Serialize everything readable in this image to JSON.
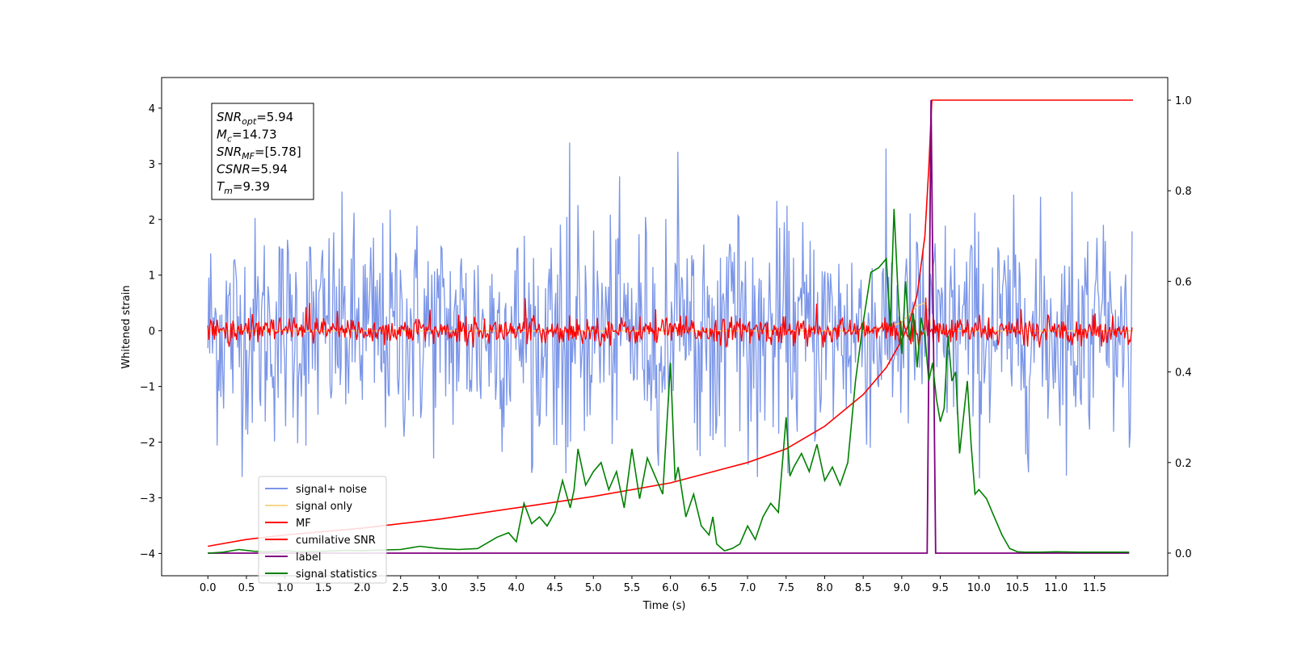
{
  "chart_data": {
    "type": "line",
    "xlabel": "Time (s)",
    "ylabel": "Whitened strain",
    "xlim": [
      -0.6,
      12.45
    ],
    "ylim": [
      -4.4,
      4.55
    ],
    "y2lim": [
      -0.05,
      1.05
    ],
    "xticks": [
      0.0,
      0.5,
      1.0,
      1.5,
      2.0,
      2.5,
      3.0,
      3.5,
      4.0,
      4.5,
      5.0,
      5.5,
      6.0,
      6.5,
      7.0,
      7.5,
      8.0,
      8.5,
      9.0,
      9.5,
      10.0,
      10.5,
      11.0,
      11.5
    ],
    "xtick_labels": [
      "0.0",
      "0.5",
      "1.0",
      "1.5",
      "2.0",
      "2.5",
      "3.0",
      "3.5",
      "4.0",
      "4.5",
      "5.0",
      "5.5",
      "6.0",
      "6.5",
      "7.0",
      "7.5",
      "8.0",
      "8.5",
      "9.0",
      "9.5",
      "10.0",
      "10.5",
      "11.0",
      "11.5"
    ],
    "yticks": [
      -4,
      -3,
      -2,
      -1,
      0,
      1,
      2,
      3,
      4
    ],
    "ytick_labels": [
      "−4",
      "−3",
      "−2",
      "−1",
      "0",
      "1",
      "2",
      "3",
      "4"
    ],
    "y2ticks": [
      0.0,
      0.2,
      0.4,
      0.6,
      0.8,
      1.0
    ],
    "y2tick_labels": [
      "0.0",
      "0.2",
      "0.4",
      "0.6",
      "0.8",
      "1.0"
    ],
    "grid": false,
    "legend_position": "lower-left",
    "stats_box": [
      {
        "main": "SNR",
        "sub": "opt",
        "value": "=5.94"
      },
      {
        "main": "M",
        "sub": "c",
        "value": "=14.73"
      },
      {
        "main": "SNR",
        "sub": "MF",
        "value": "=[5.78]"
      },
      {
        "main": "CSNR",
        "sub": "",
        "value": "=5.94"
      },
      {
        "main": "T",
        "sub": "m",
        "value": "=9.39"
      }
    ],
    "series": [
      {
        "name": "signal+ noise",
        "color": "#7b96e8",
        "axis": "left",
        "description_values": {
          "x_range": [
            0.0,
            12.0
          ],
          "approx_spread": [
            -2.7,
            3.4
          ],
          "sample_step": 0.012
        }
      },
      {
        "name": "signal only",
        "color": "#f5d78a",
        "axis": "left",
        "x": [
          0.0,
          8.5,
          8.8,
          9.0,
          9.1,
          9.2,
          9.3,
          9.35,
          9.39,
          9.45,
          12.0
        ],
        "y": [
          0.0,
          0.0,
          0.05,
          0.15,
          0.3,
          0.45,
          0.5,
          0.35,
          0.0,
          0.0,
          0.0
        ]
      },
      {
        "name": "MF",
        "color": "#ff0000",
        "axis": "left",
        "description_values": {
          "x_range": [
            0.0,
            12.0
          ],
          "approx_spread": [
            -0.3,
            0.4
          ],
          "sample_step": 0.012
        }
      },
      {
        "name": "cumilative SNR",
        "color": "#ff0000",
        "axis": "right",
        "x": [
          0.0,
          0.5,
          1.0,
          2.0,
          3.0,
          4.0,
          5.0,
          6.0,
          7.0,
          7.5,
          8.0,
          8.5,
          8.8,
          9.0,
          9.1,
          9.2,
          9.3,
          9.35,
          9.39,
          12.0
        ],
        "y": [
          0.015,
          0.03,
          0.04,
          0.055,
          0.075,
          0.1,
          0.125,
          0.155,
          0.2,
          0.23,
          0.28,
          0.35,
          0.41,
          0.47,
          0.51,
          0.57,
          0.7,
          0.85,
          1.0,
          1.0
        ]
      },
      {
        "name": "label",
        "color": "#800080",
        "axis": "right",
        "x": [
          0.0,
          9.33,
          9.38,
          9.44,
          9.45,
          11.95
        ],
        "y": [
          0.0,
          0.0,
          1.0,
          0.0,
          0.0,
          0.0
        ]
      },
      {
        "name": "signal statistics",
        "color": "#008000",
        "axis": "right",
        "x": [
          0.0,
          0.2,
          0.4,
          0.6,
          0.8,
          1.0,
          1.2,
          1.5,
          1.8,
          2.0,
          2.3,
          2.5,
          2.75,
          3.0,
          3.25,
          3.5,
          3.6,
          3.75,
          3.9,
          4.0,
          4.1,
          4.2,
          4.3,
          4.4,
          4.5,
          4.6,
          4.7,
          4.75,
          4.8,
          4.9,
          5.0,
          5.1,
          5.2,
          5.3,
          5.4,
          5.5,
          5.6,
          5.7,
          5.8,
          5.9,
          6.0,
          6.06,
          6.1,
          6.2,
          6.3,
          6.4,
          6.5,
          6.55,
          6.6,
          6.7,
          6.8,
          6.9,
          7.0,
          7.1,
          7.2,
          7.3,
          7.4,
          7.5,
          7.55,
          7.6,
          7.7,
          7.8,
          7.9,
          8.0,
          8.1,
          8.2,
          8.3,
          8.4,
          8.5,
          8.6,
          8.7,
          8.8,
          8.85,
          8.9,
          8.95,
          9.0,
          9.05,
          9.1,
          9.15,
          9.2,
          9.25,
          9.3,
          9.35,
          9.4,
          9.45,
          9.5,
          9.55,
          9.6,
          9.65,
          9.7,
          9.75,
          9.8,
          9.85,
          9.9,
          9.95,
          10.0,
          10.1,
          10.2,
          10.3,
          10.4,
          10.5,
          10.6,
          10.8,
          11.0,
          11.3,
          11.6,
          11.95
        ],
        "y": [
          0.0,
          0.002,
          0.008,
          0.004,
          0.003,
          0.005,
          0.003,
          0.004,
          0.006,
          0.005,
          0.007,
          0.008,
          0.015,
          0.01,
          0.008,
          0.01,
          0.02,
          0.035,
          0.045,
          0.025,
          0.11,
          0.065,
          0.08,
          0.06,
          0.09,
          0.16,
          0.1,
          0.14,
          0.23,
          0.15,
          0.18,
          0.2,
          0.14,
          0.18,
          0.1,
          0.23,
          0.12,
          0.21,
          0.17,
          0.13,
          0.42,
          0.16,
          0.19,
          0.08,
          0.13,
          0.06,
          0.04,
          0.08,
          0.02,
          0.005,
          0.01,
          0.02,
          0.06,
          0.03,
          0.08,
          0.11,
          0.09,
          0.3,
          0.17,
          0.19,
          0.22,
          0.18,
          0.24,
          0.16,
          0.19,
          0.15,
          0.2,
          0.38,
          0.51,
          0.62,
          0.63,
          0.65,
          0.5,
          0.76,
          0.58,
          0.44,
          0.6,
          0.47,
          0.53,
          0.41,
          0.52,
          0.48,
          0.38,
          0.42,
          0.34,
          0.29,
          0.32,
          0.48,
          0.38,
          0.4,
          0.22,
          0.3,
          0.38,
          0.24,
          0.13,
          0.14,
          0.12,
          0.08,
          0.04,
          0.01,
          0.003,
          0.002,
          0.002,
          0.003,
          0.002,
          0.002,
          0.002
        ]
      }
    ]
  }
}
